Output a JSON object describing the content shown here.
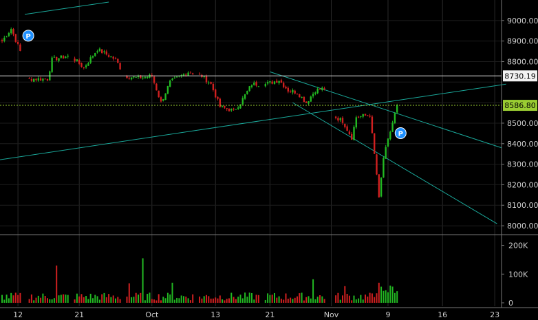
{
  "chart_data": {
    "type": "candlestick",
    "price_panel": {
      "ylim": [
        7960,
        9100
      ],
      "y_ticks": [
        8000,
        8100,
        8200,
        8300,
        8400,
        8500,
        8600,
        8700,
        8800,
        8900,
        9000
      ],
      "y_tick_labels": [
        "8000.00",
        "8100.00",
        "8200.00",
        "8300.00",
        "8400.00",
        "8500.00",
        "8600.00",
        "8700.00",
        "8800.00",
        "8900.00",
        "9000.00"
      ],
      "horizontal_line": {
        "value": 8730.19,
        "label": "8730.19",
        "color": "#e0e0e0"
      },
      "last_price_line": {
        "value": 8586.8,
        "label": "8586.80",
        "color": "#9acd32"
      },
      "up_color": "#22b822",
      "down_color": "#d02020",
      "series_keypoints": [
        {
          "i": 0,
          "v": 8900
        },
        {
          "i": 4,
          "v": 8960
        },
        {
          "i": 8,
          "v": 8850
        },
        {
          "i": 9,
          "v": 8715
        },
        {
          "i": 20,
          "v": 8715
        },
        {
          "i": 22,
          "v": 8810
        },
        {
          "i": 30,
          "v": 8830
        },
        {
          "i": 36,
          "v": 8770
        },
        {
          "i": 42,
          "v": 8860
        },
        {
          "i": 50,
          "v": 8810
        },
        {
          "i": 54,
          "v": 8730
        },
        {
          "i": 60,
          "v": 8720
        },
        {
          "i": 66,
          "v": 8730
        },
        {
          "i": 70,
          "v": 8600
        },
        {
          "i": 74,
          "v": 8700
        },
        {
          "i": 82,
          "v": 8750
        },
        {
          "i": 88,
          "v": 8730
        },
        {
          "i": 92,
          "v": 8690
        },
        {
          "i": 96,
          "v": 8580
        },
        {
          "i": 102,
          "v": 8560
        },
        {
          "i": 105,
          "v": 8600
        },
        {
          "i": 110,
          "v": 8690
        },
        {
          "i": 116,
          "v": 8690
        },
        {
          "i": 122,
          "v": 8710
        },
        {
          "i": 126,
          "v": 8660
        },
        {
          "i": 130,
          "v": 8650
        },
        {
          "i": 134,
          "v": 8600
        },
        {
          "i": 138,
          "v": 8660
        },
        {
          "i": 142,
          "v": 8670
        },
        {
          "i": 145,
          "v": 8540
        },
        {
          "i": 150,
          "v": 8510
        },
        {
          "i": 154,
          "v": 8430
        },
        {
          "i": 156,
          "v": 8530
        },
        {
          "i": 162,
          "v": 8540
        },
        {
          "i": 165,
          "v": 8250
        },
        {
          "i": 166,
          "v": 8130
        },
        {
          "i": 168,
          "v": 8330
        },
        {
          "i": 171,
          "v": 8460
        },
        {
          "i": 174,
          "v": 8586.8
        }
      ],
      "count": 175,
      "markers": [
        {
          "label": "P",
          "i": 7,
          "value": 9010
        },
        {
          "label": "P",
          "i": 171,
          "value": 8535
        }
      ],
      "trendlines": [
        {
          "from": {
            "i": 10,
            "v": 9030
          },
          "to": {
            "i": 47,
            "v": 9090
          }
        },
        {
          "from": {
            "i": -2,
            "v": 8320
          },
          "to": {
            "i": 222,
            "v": 8690
          }
        },
        {
          "from": {
            "i": 118,
            "v": 8750
          },
          "to": {
            "i": 220,
            "v": 8380
          }
        },
        {
          "from": {
            "i": 128,
            "v": 8600
          },
          "to": {
            "i": 218,
            "v": 8010
          }
        }
      ]
    },
    "volume_panel": {
      "ylim": [
        0,
        235000
      ],
      "y_ticks": [
        0,
        100000,
        200000
      ],
      "y_tick_labels": [
        "0",
        "100K",
        "200K"
      ],
      "spikes": [
        {
          "i": 24,
          "v": 130000
        },
        {
          "i": 62,
          "v": 155000
        },
        {
          "i": 56,
          "v": 68000
        },
        {
          "i": 75,
          "v": 70000
        },
        {
          "i": 137,
          "v": 82000
        },
        {
          "i": 151,
          "v": 58000
        },
        {
          "i": 166,
          "v": 70000
        },
        {
          "i": 171,
          "v": 60000
        }
      ]
    },
    "x_axis": {
      "tick_labels": [
        "12",
        "21",
        "Oct",
        "13",
        "21",
        "Nov",
        "9",
        "16",
        "23"
      ],
      "tick_positions": [
        7,
        34,
        66,
        94,
        118,
        145,
        170,
        194,
        217
      ]
    }
  }
}
